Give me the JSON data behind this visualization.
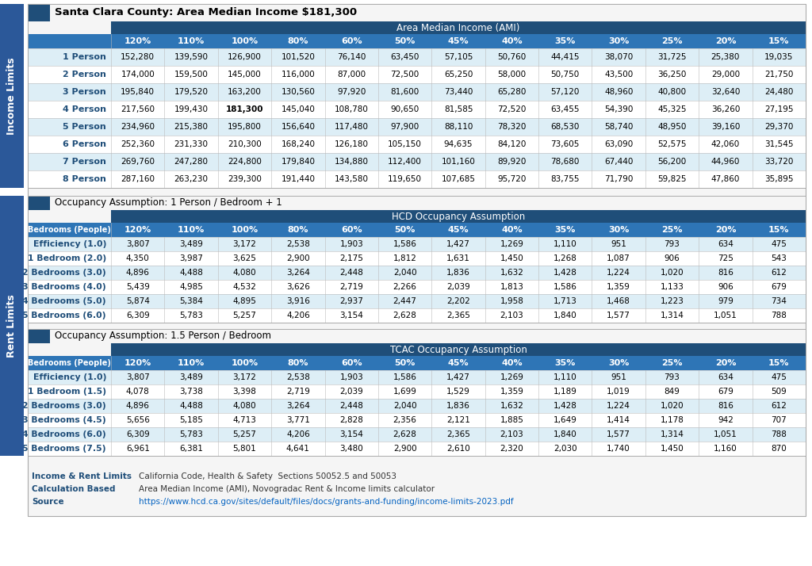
{
  "title": "Santa Clara County: Area Median Income $181,300",
  "ami_header": "Area Median Income (AMI)",
  "hcd_header": "HCD Occupancy Assumption",
  "tcac_header": "TCAC Occupancy Assumption",
  "occ1_title": "Occupancy Assumption: 1 Person / Bedroom + 1",
  "occ2_title": "Occupancy Assumption: 1.5 Person / Bedroom",
  "ami_columns": [
    "120%",
    "110%",
    "100%",
    "80%",
    "60%",
    "50%",
    "45%",
    "40%",
    "35%",
    "30%",
    "25%",
    "20%",
    "15%"
  ],
  "income_row_labels": [
    "1 Person",
    "2 Person",
    "3 Person",
    "4 Person",
    "5 Person",
    "6 Person",
    "7 Person",
    "8 Person"
  ],
  "income_data": [
    [
      152280,
      139590,
      126900,
      101520,
      76140,
      63450,
      57105,
      50760,
      44415,
      38070,
      31725,
      25380,
      19035
    ],
    [
      174000,
      159500,
      145000,
      116000,
      87000,
      72500,
      65250,
      58000,
      50750,
      43500,
      36250,
      29000,
      21750
    ],
    [
      195840,
      179520,
      163200,
      130560,
      97920,
      81600,
      73440,
      65280,
      57120,
      48960,
      40800,
      32640,
      24480
    ],
    [
      217560,
      199430,
      181300,
      145040,
      108780,
      90650,
      81585,
      72520,
      63455,
      54390,
      45325,
      36260,
      27195
    ],
    [
      234960,
      215380,
      195800,
      156640,
      117480,
      97900,
      88110,
      78320,
      68530,
      58740,
      48950,
      39160,
      29370
    ],
    [
      252360,
      231330,
      210300,
      168240,
      126180,
      105150,
      94635,
      84120,
      73605,
      63090,
      52575,
      42060,
      31545
    ],
    [
      269760,
      247280,
      224800,
      179840,
      134880,
      112400,
      101160,
      89920,
      78680,
      67440,
      56200,
      44960,
      33720
    ],
    [
      287160,
      263230,
      239300,
      191440,
      143580,
      119650,
      107685,
      95720,
      83755,
      71790,
      59825,
      47860,
      35895
    ]
  ],
  "bold_cell": [
    3,
    2
  ],
  "hcd_row_labels": [
    "Efficiency (1.0)",
    "1 Bedroom (2.0)",
    "2 Bedrooms (3.0)",
    "3 Bedrooms (4.0)",
    "4 Bedrooms (5.0)",
    "5 Bedrooms (6.0)"
  ],
  "hcd_data": [
    [
      3807,
      3489,
      3172,
      2538,
      1903,
      1586,
      1427,
      1269,
      1110,
      951,
      793,
      634,
      475
    ],
    [
      4350,
      3987,
      3625,
      2900,
      2175,
      1812,
      1631,
      1450,
      1268,
      1087,
      906,
      725,
      543
    ],
    [
      4896,
      4488,
      4080,
      3264,
      2448,
      2040,
      1836,
      1632,
      1428,
      1224,
      1020,
      816,
      612
    ],
    [
      5439,
      4985,
      4532,
      3626,
      2719,
      2266,
      2039,
      1813,
      1586,
      1359,
      1133,
      906,
      679
    ],
    [
      5874,
      5384,
      4895,
      3916,
      2937,
      2447,
      2202,
      1958,
      1713,
      1468,
      1223,
      979,
      734
    ],
    [
      6309,
      5783,
      5257,
      4206,
      3154,
      2628,
      2365,
      2103,
      1840,
      1577,
      1314,
      1051,
      788
    ]
  ],
  "tcac_row_labels": [
    "Efficiency (1.0)",
    "1 Bedroom (1.5)",
    "2 Bedrooms (3.0)",
    "3 Bedrooms (4.5)",
    "4 Bedrooms (6.0)",
    "5 Bedrooms (7.5)"
  ],
  "tcac_data": [
    [
      3807,
      3489,
      3172,
      2538,
      1903,
      1586,
      1427,
      1269,
      1110,
      951,
      793,
      634,
      475
    ],
    [
      4078,
      3738,
      3398,
      2719,
      2039,
      1699,
      1529,
      1359,
      1189,
      1019,
      849,
      679,
      509
    ],
    [
      4896,
      4488,
      4080,
      3264,
      2448,
      2040,
      1836,
      1632,
      1428,
      1224,
      1020,
      816,
      612
    ],
    [
      5656,
      5185,
      4713,
      3771,
      2828,
      2356,
      2121,
      1885,
      1649,
      1414,
      1178,
      942,
      707
    ],
    [
      6309,
      5783,
      5257,
      4206,
      3154,
      2628,
      2365,
      2103,
      1840,
      1577,
      1314,
      1051,
      788
    ],
    [
      6961,
      6381,
      5801,
      4641,
      3480,
      2900,
      2610,
      2320,
      2030,
      1740,
      1450,
      1160,
      870
    ]
  ],
  "footer_labels": [
    "Income & Rent Limits",
    "Calculation Based",
    "Source"
  ],
  "footer_values": [
    "California Code, Health & Safety  Sections 50052.5 and 50053",
    "Area Median Income (AMI), Novogradac Rent & Income limits calculator",
    "https://www.hcd.ca.gov/sites/default/files/docs/grants-and-funding/income-limits-2023.pdf"
  ],
  "sidebar_label1": "Income Limits",
  "sidebar_label2": "Rent Limits",
  "color_dark_blue": "#1F4E79",
  "color_mid_blue": "#2E75B6",
  "color_light_blue_row": "#DDEEF6",
  "color_section_bg": "#EEF0F3",
  "color_white": "#FFFFFF",
  "color_sidebar": "#2B5899",
  "color_footer_label": "#1F4E79",
  "color_footer_link": "#0563C1",
  "color_border": "#AAAAAA"
}
